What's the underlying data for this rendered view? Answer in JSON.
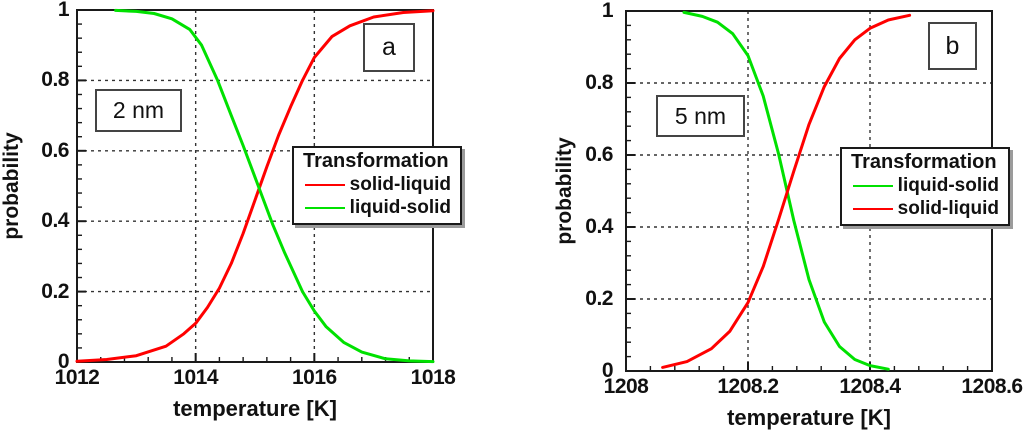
{
  "figure": {
    "background": "#ffffff",
    "text_color": "#111111",
    "frame_color": "#1a1a1a",
    "grid_color": "#333333",
    "panels": [
      {
        "id": "a",
        "corner_label": "a",
        "annotation": "2 nm",
        "xlabel": "temperature [K]",
        "ylabel": "probability",
        "legend_title": "Transformation"
      },
      {
        "id": "b",
        "corner_label": "b",
        "annotation": "5 nm",
        "xlabel": "temperature [K]",
        "ylabel": "probability",
        "legend_title": "Transformation"
      }
    ]
  },
  "chart_data": [
    {
      "type": "line",
      "panel": "a",
      "title": "",
      "xlabel": "temperature [K]",
      "ylabel": "probability",
      "xlim": [
        1012,
        1018
      ],
      "ylim": [
        0,
        1
      ],
      "x_major_ticks": [
        1012,
        1014,
        1016,
        1018
      ],
      "x_tick_labels": [
        "1012",
        "1014",
        "1016",
        "1018"
      ],
      "x_minor_step": 0.4,
      "y_major_ticks": [
        0,
        0.2,
        0.4,
        0.6,
        0.8,
        1
      ],
      "y_tick_labels": [
        "0",
        "0.2",
        "0.4",
        "0.6",
        "0.8",
        "1"
      ],
      "y_minor_step": 0.04,
      "x_gridlines": [
        1014,
        1016
      ],
      "y_gridlines": [
        0.2,
        0.4,
        0.6,
        0.8
      ],
      "grid": "dashed",
      "legend_title": "Transformation",
      "legend_position": "middle-right",
      "series": [
        {
          "name": "solid-liquid",
          "color": "#ff0000",
          "x": [
            1012.0,
            1012.5,
            1013.0,
            1013.5,
            1013.8,
            1014.0,
            1014.2,
            1014.4,
            1014.6,
            1014.8,
            1015.0,
            1015.2,
            1015.4,
            1015.6,
            1015.8,
            1016.0,
            1016.3,
            1016.6,
            1017.0,
            1017.5,
            1018.0
          ],
          "y": [
            0.002,
            0.007,
            0.018,
            0.045,
            0.08,
            0.11,
            0.155,
            0.21,
            0.28,
            0.365,
            0.46,
            0.555,
            0.645,
            0.725,
            0.8,
            0.865,
            0.925,
            0.955,
            0.98,
            0.993,
            0.998
          ]
        },
        {
          "name": "liquid-solid",
          "color": "#00e100",
          "x": [
            1012.65,
            1013.0,
            1013.3,
            1013.6,
            1013.9,
            1014.1,
            1014.37,
            1014.6,
            1014.8,
            1015.0,
            1015.1,
            1015.3,
            1015.5,
            1015.8,
            1016.0,
            1016.2,
            1016.5,
            1016.8,
            1017.2,
            1017.6,
            1018.0
          ],
          "y": [
            0.999,
            0.996,
            0.99,
            0.975,
            0.945,
            0.9,
            0.8,
            0.7,
            0.615,
            0.525,
            0.48,
            0.39,
            0.31,
            0.2,
            0.145,
            0.1,
            0.055,
            0.028,
            0.009,
            0.003,
            0.001
          ]
        }
      ]
    },
    {
      "type": "line",
      "panel": "b",
      "title": "",
      "xlabel": "temperature [K]",
      "ylabel": "probability",
      "xlim": [
        1208,
        1208.6
      ],
      "ylim": [
        0,
        1
      ],
      "x_major_ticks": [
        1208,
        1208.2,
        1208.4,
        1208.6
      ],
      "x_tick_labels": [
        "1208",
        "1208.2",
        "1208.4",
        "1208.6"
      ],
      "x_minor_step": 0.04,
      "y_major_ticks": [
        0,
        0.2,
        0.4,
        0.6,
        0.8,
        1
      ],
      "y_tick_labels": [
        "0",
        "0.2",
        "0.4",
        "0.6",
        "0.8",
        "1"
      ],
      "y_minor_step": 0.04,
      "x_gridlines": [
        1208.2,
        1208.4
      ],
      "y_gridlines": [
        0.2,
        0.4,
        0.6,
        0.8
      ],
      "grid": "dashed",
      "legend_title": "Transformation",
      "legend_position": "middle-right",
      "series": [
        {
          "name": "liquid-solid",
          "color": "#00e100",
          "x": [
            1208.095,
            1208.125,
            1208.15,
            1208.175,
            1208.2,
            1208.225,
            1208.25,
            1208.275,
            1208.3,
            1208.325,
            1208.35,
            1208.375,
            1208.4,
            1208.43
          ],
          "y": [
            0.996,
            0.985,
            0.969,
            0.937,
            0.876,
            0.764,
            0.604,
            0.418,
            0.254,
            0.136,
            0.068,
            0.032,
            0.015,
            0.005
          ]
        },
        {
          "name": "solid-liquid",
          "color": "#ff0000",
          "x": [
            1208.06,
            1208.1,
            1208.14,
            1208.17,
            1208.2,
            1208.225,
            1208.25,
            1208.275,
            1208.3,
            1208.325,
            1208.35,
            1208.375,
            1208.4,
            1208.43,
            1208.465
          ],
          "y": [
            0.01,
            0.026,
            0.062,
            0.11,
            0.19,
            0.29,
            0.42,
            0.555,
            0.685,
            0.79,
            0.868,
            0.92,
            0.952,
            0.975,
            0.988
          ]
        }
      ]
    }
  ]
}
